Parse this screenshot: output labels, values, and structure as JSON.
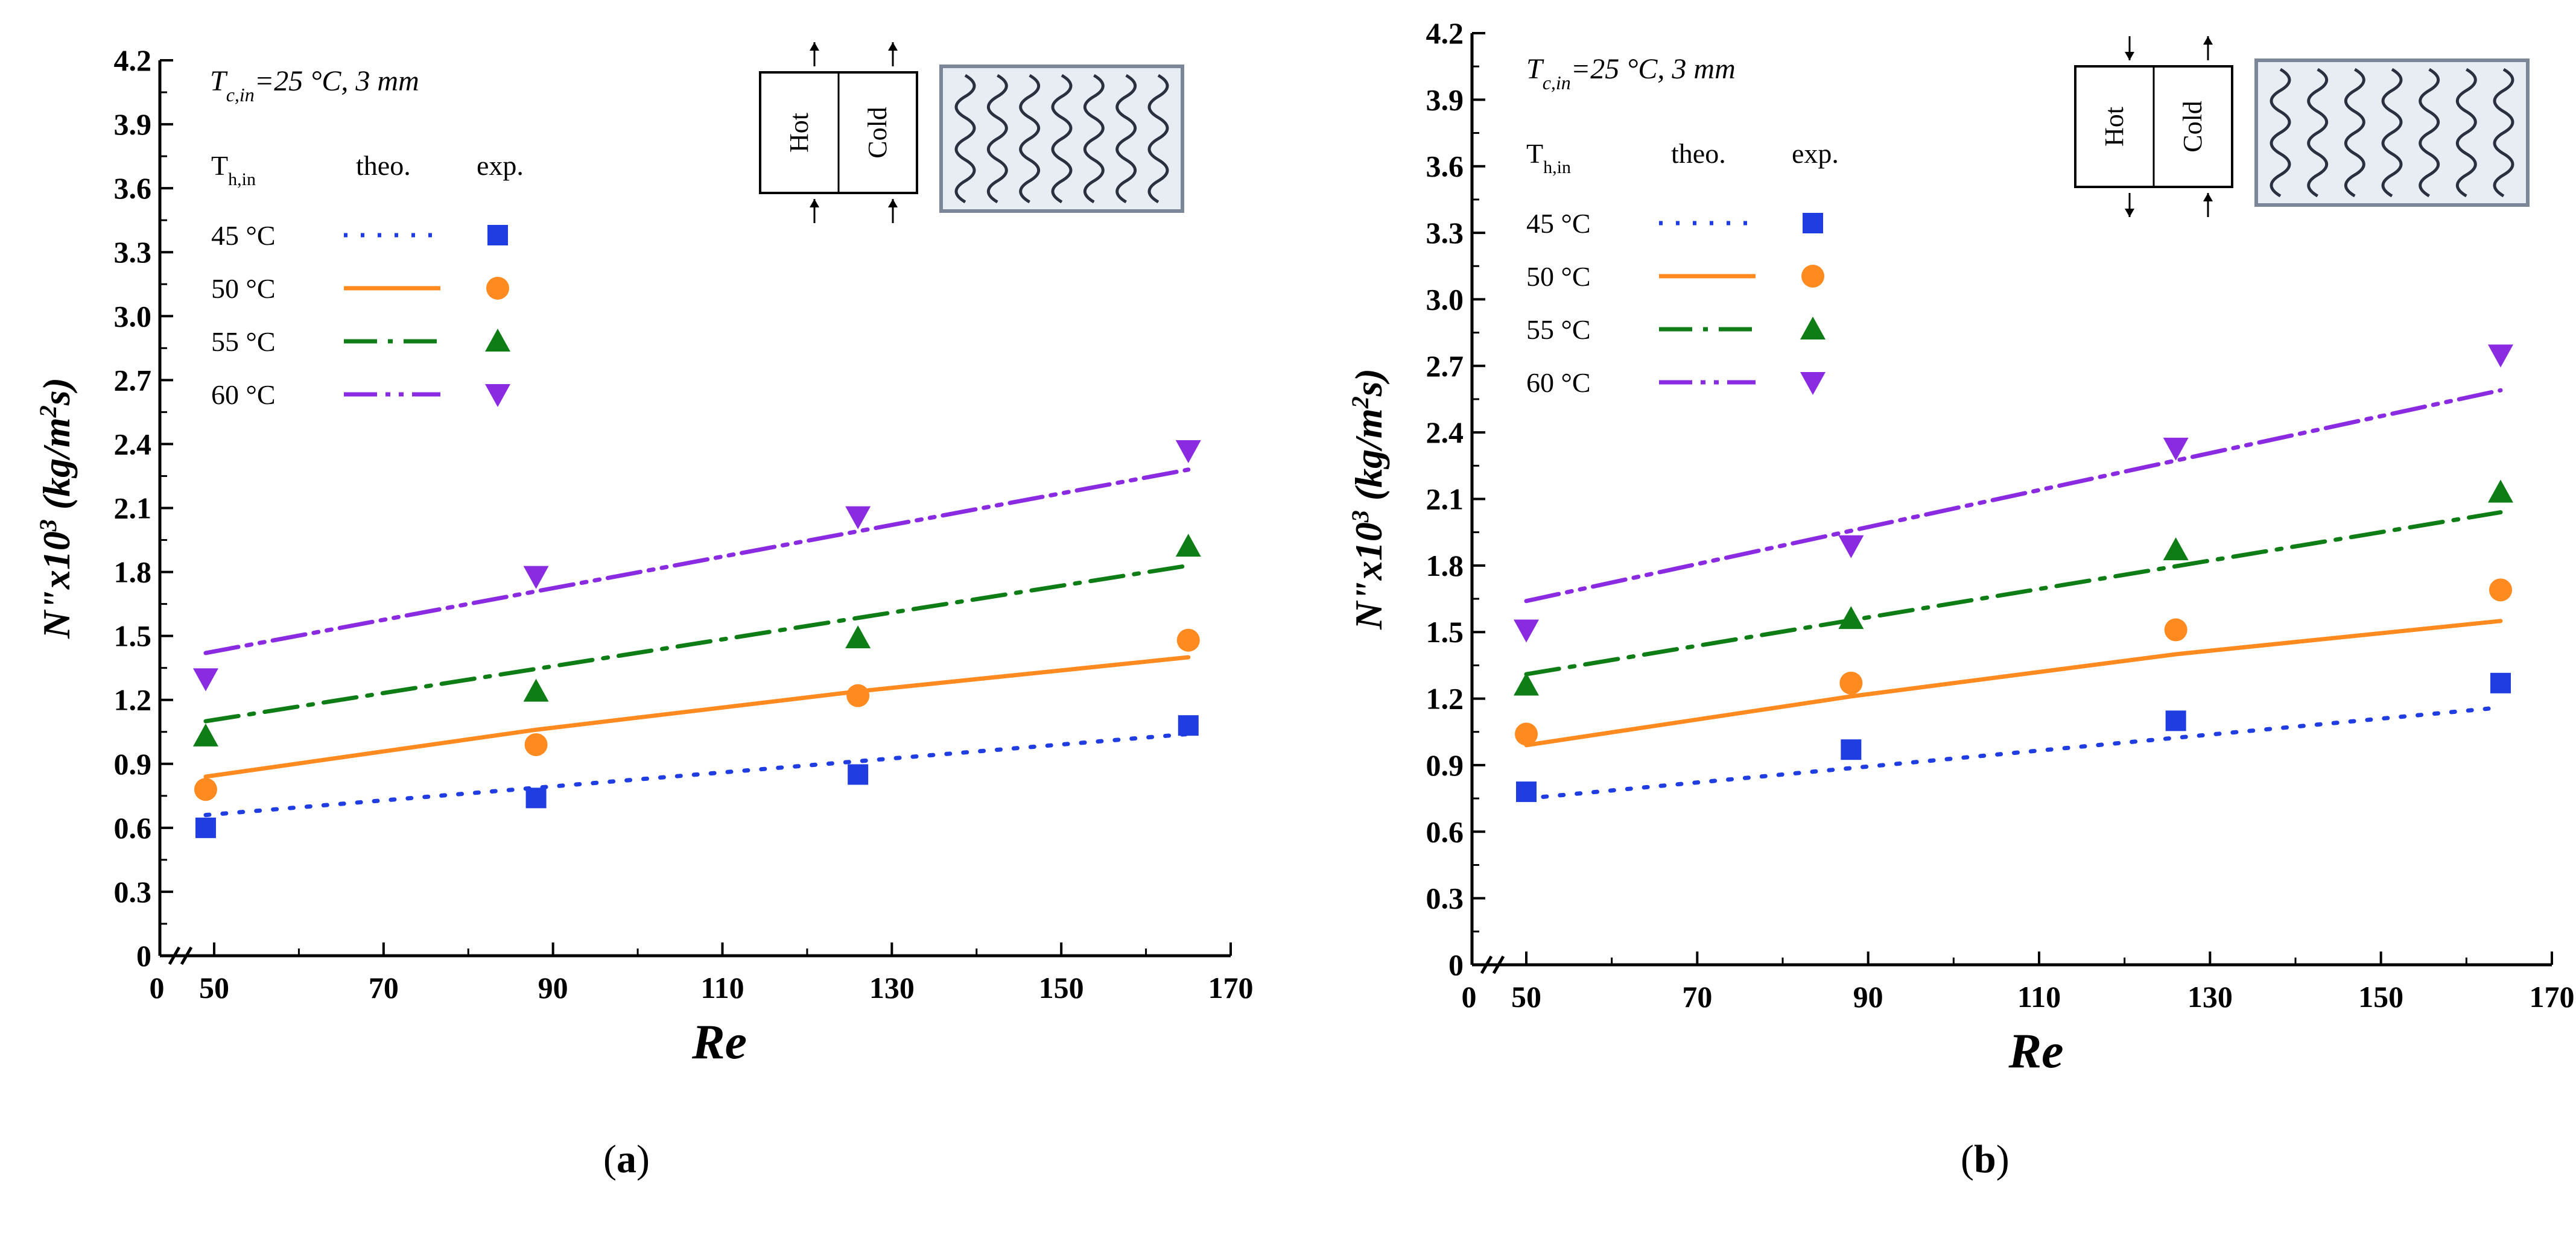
{
  "figure": {
    "captions": [
      {
        "open": "(",
        "letter": "a",
        "close": ")"
      },
      {
        "open": "(",
        "letter": "b",
        "close": ")"
      }
    ]
  },
  "colors": {
    "45": "#1f3de0",
    "50": "#ff8a1f",
    "55": "#0f7d16",
    "60": "#8a2be2",
    "axis": "#000000",
    "inset_bg": "#e8ecf3",
    "inset_line": "#2a3040"
  },
  "chart_data": [
    {
      "type": "scatter",
      "panel": "a",
      "title": "",
      "condition_main": "T",
      "condition_sub": "c,in",
      "condition_rest": "=25 °C, 3 mm",
      "xlabel": "Re",
      "ylabel_main": "N\"x10",
      "ylabel_sup1": "3",
      "ylabel_mid": " (kg/m",
      "ylabel_sup2": "2",
      "ylabel_end": "s)",
      "xlim": [
        0,
        170
      ],
      "ylim": [
        0,
        4.2
      ],
      "x_ticks": [
        "0",
        "50",
        "70",
        "90",
        "110",
        "130",
        "150",
        "170"
      ],
      "y_ticks": [
        "0",
        "0.3",
        "0.6",
        "0.9",
        "1.2",
        "1.5",
        "1.8",
        "2.1",
        "2.4",
        "2.7",
        "3.0",
        "3.3",
        "3.6",
        "3.9",
        "4.2"
      ],
      "legend": {
        "header_T": "T",
        "header_sub": "h,in",
        "header_theo": "theo.",
        "header_exp": "exp."
      },
      "inset": {
        "hot": "Hot",
        "cold": "Cold",
        "flow": "parallel"
      },
      "series": [
        {
          "name": "45 °C",
          "color_key": "45",
          "marker": "square",
          "dash": "dot",
          "exp_x": [
            49,
            88,
            126,
            165
          ],
          "exp_y": [
            0.6,
            0.74,
            0.85,
            1.08
          ],
          "theo_x": [
            49,
            165
          ],
          "theo_y": [
            0.66,
            1.04
          ]
        },
        {
          "name": "50 °C",
          "color_key": "50",
          "marker": "circle",
          "dash": "solid",
          "exp_x": [
            49,
            88,
            126,
            165
          ],
          "exp_y": [
            0.78,
            0.99,
            1.22,
            1.48
          ],
          "theo_x": [
            49,
            88,
            126,
            165
          ],
          "theo_y": [
            0.84,
            1.06,
            1.24,
            1.4
          ]
        },
        {
          "name": "55 °C",
          "color_key": "55",
          "marker": "triangle-up",
          "dash": "dashdot",
          "exp_x": [
            49,
            88,
            126,
            165
          ],
          "exp_y": [
            1.03,
            1.24,
            1.49,
            1.92
          ],
          "theo_x": [
            49,
            165
          ],
          "theo_y": [
            1.1,
            1.83
          ]
        },
        {
          "name": "60 °C",
          "color_key": "60",
          "marker": "triangle-down",
          "dash": "dashdotdot",
          "exp_x": [
            49,
            88,
            126,
            165
          ],
          "exp_y": [
            1.3,
            1.78,
            2.06,
            2.37
          ],
          "theo_x": [
            49,
            165
          ],
          "theo_y": [
            1.42,
            2.28
          ]
        }
      ]
    },
    {
      "type": "scatter",
      "panel": "b",
      "title": "",
      "condition_main": "T",
      "condition_sub": "c,in",
      "condition_rest": "=25 °C, 3 mm",
      "xlabel": "Re",
      "ylabel_main": "N\"x10",
      "ylabel_sup1": "3",
      "ylabel_mid": " (kg/m",
      "ylabel_sup2": "2",
      "ylabel_end": "s)",
      "xlim": [
        0,
        170
      ],
      "ylim": [
        0,
        4.2
      ],
      "x_ticks": [
        "0",
        "50",
        "70",
        "90",
        "110",
        "130",
        "150",
        "170"
      ],
      "y_ticks": [
        "0",
        "0.3",
        "0.6",
        "0.9",
        "1.2",
        "1.5",
        "1.8",
        "2.1",
        "2.4",
        "2.7",
        "3.0",
        "3.3",
        "3.6",
        "3.9",
        "4.2"
      ],
      "legend": {
        "header_T": "T",
        "header_sub": "h,in",
        "header_theo": "theo.",
        "header_exp": "exp."
      },
      "inset": {
        "hot": "Hot",
        "cold": "Cold",
        "flow": "counter"
      },
      "series": [
        {
          "name": "45 °C",
          "color_key": "45",
          "marker": "square",
          "dash": "dot",
          "exp_x": [
            50,
            88,
            126,
            164
          ],
          "exp_y": [
            0.78,
            0.97,
            1.1,
            1.27
          ],
          "theo_x": [
            50,
            164
          ],
          "theo_y": [
            0.75,
            1.16
          ]
        },
        {
          "name": "50 °C",
          "color_key": "50",
          "marker": "circle",
          "dash": "solid",
          "exp_x": [
            50,
            88,
            126,
            164
          ],
          "exp_y": [
            1.04,
            1.27,
            1.51,
            1.69
          ],
          "theo_x": [
            50,
            88,
            126,
            164
          ],
          "theo_y": [
            0.99,
            1.21,
            1.4,
            1.55
          ]
        },
        {
          "name": "55 °C",
          "color_key": "55",
          "marker": "triangle-up",
          "dash": "dashdot",
          "exp_x": [
            50,
            88,
            126,
            164
          ],
          "exp_y": [
            1.26,
            1.56,
            1.87,
            2.13
          ],
          "theo_x": [
            50,
            164
          ],
          "theo_y": [
            1.31,
            2.04
          ]
        },
        {
          "name": "60 °C",
          "color_key": "60",
          "marker": "triangle-down",
          "dash": "dashdotdot",
          "exp_x": [
            50,
            88,
            126,
            164
          ],
          "exp_y": [
            1.51,
            1.89,
            2.33,
            2.75
          ],
          "theo_x": [
            50,
            164
          ],
          "theo_y": [
            1.64,
            2.59
          ]
        }
      ]
    }
  ]
}
